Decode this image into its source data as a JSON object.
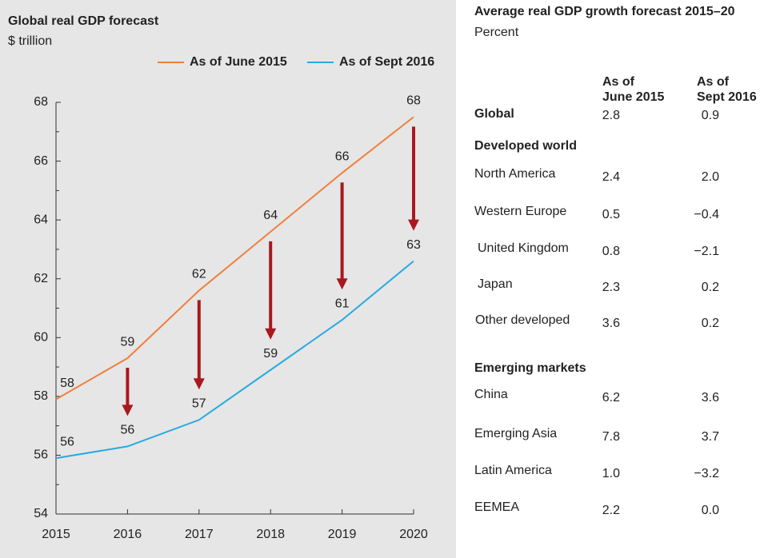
{
  "chart_data": {
    "type": "line",
    "title": "Global real GDP forecast",
    "subtitle": "$ trillion",
    "x": [
      2015,
      2016,
      2017,
      2018,
      2019,
      2020
    ],
    "xlim": [
      2015,
      2020
    ],
    "xticks": [
      2015,
      2016,
      2017,
      2018,
      2019,
      2020
    ],
    "ylim": [
      54,
      68
    ],
    "yticks": [
      54,
      56,
      58,
      60,
      62,
      64,
      66,
      68
    ],
    "series": [
      {
        "name": "As of June 2015",
        "color": "#f07f3c",
        "values": [
          57.9,
          59.3,
          61.6,
          63.6,
          65.6,
          67.5
        ],
        "value_labels": [
          "58",
          "59",
          "62",
          "64",
          "66",
          "68"
        ]
      },
      {
        "name": "As of Sept 2016",
        "color": "#27aae1",
        "values": [
          55.9,
          56.3,
          57.2,
          58.9,
          60.6,
          62.6
        ],
        "value_labels": [
          "56",
          "56",
          "57",
          "59",
          "61",
          "63"
        ]
      }
    ]
  },
  "table": {
    "title": "Average real GDP growth forecast 2015–20",
    "subtitle": "Percent",
    "columns": [
      [
        "As of",
        "June 2015"
      ],
      [
        "As of",
        "Sept 2016"
      ]
    ],
    "rows": [
      {
        "label": "Global",
        "june": "2.8",
        "sept": "0.9"
      },
      {
        "label": "Developed world"
      },
      {
        "label": "North America",
        "june": "2.4",
        "sept": "2.0"
      },
      {
        "label": "Western Europe",
        "june": "0.5",
        "sept": "−0.4"
      },
      {
        "label": "United Kingdom",
        "june": "0.8",
        "sept": "−2.1"
      },
      {
        "label": "Japan",
        "june": "2.3",
        "sept": "0.2"
      },
      {
        "label": "Other developed",
        "june": "3.6",
        "sept": "0.2"
      },
      {
        "label": "Emerging markets"
      },
      {
        "label": "China",
        "june": "6.2",
        "sept": "3.6"
      },
      {
        "label": "Emerging Asia",
        "june": "7.8",
        "sept": "3.7"
      },
      {
        "label": "Latin America",
        "june": "1.0",
        "sept": "−3.2"
      },
      {
        "label": "EEMEA",
        "june": "2.2",
        "sept": "0.0"
      }
    ]
  }
}
